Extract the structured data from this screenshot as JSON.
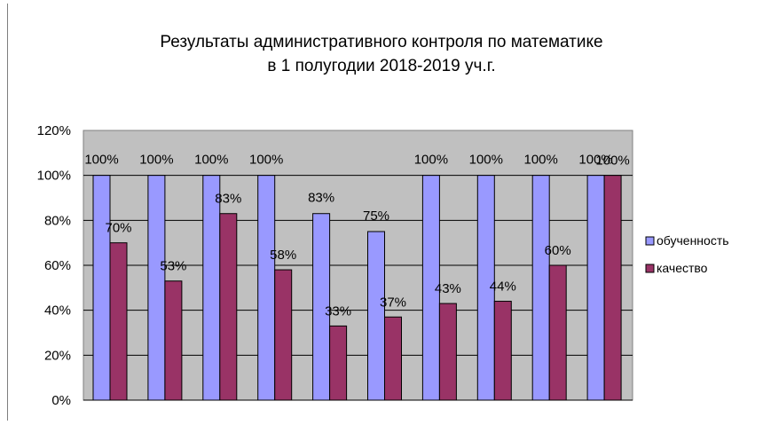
{
  "chart_data": {
    "type": "bar",
    "title_lines": [
      "Результаты  административного контроля по математике",
      "в  1 полугодии 2018-2019 уч.г."
    ],
    "categories": [
      "",
      "",
      "",
      "",
      "",
      "",
      "",
      "",
      "",
      ""
    ],
    "series": [
      {
        "name": "обученность",
        "color": "#9999ff",
        "values": [
          100,
          100,
          100,
          100,
          83,
          75,
          100,
          100,
          100,
          100
        ]
      },
      {
        "name": "качество",
        "color": "#993366",
        "values": [
          70,
          53,
          83,
          58,
          33,
          37,
          43,
          44,
          60,
          100
        ]
      }
    ],
    "y_ticks": [
      "0%",
      "20%",
      "40%",
      "60%",
      "80%",
      "100%",
      "120%"
    ],
    "ylim": [
      0,
      120
    ],
    "value_suffix": "%",
    "plot_background": "#c0c0c0",
    "grid": true,
    "legend_position": "right"
  }
}
